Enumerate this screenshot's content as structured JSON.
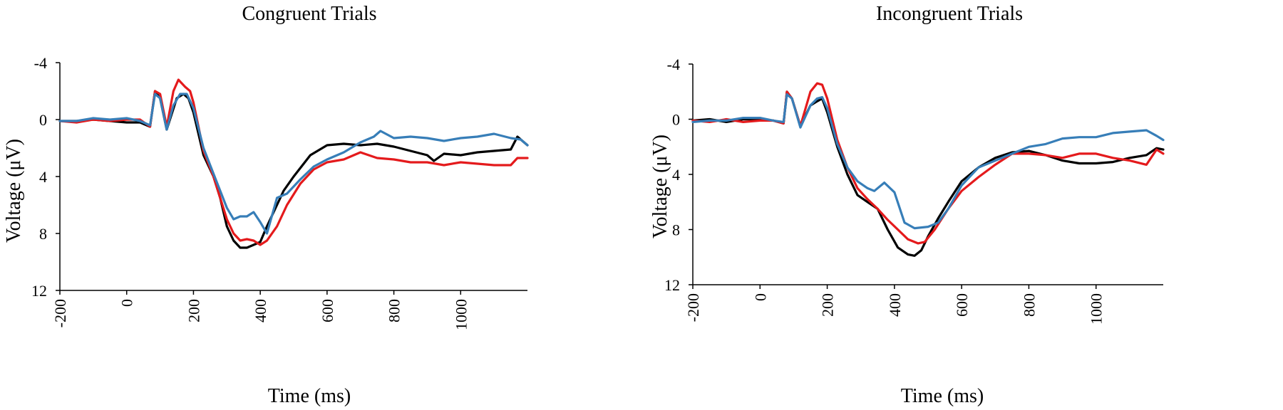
{
  "chart_data": [
    {
      "type": "line",
      "title": "Congruent Trials",
      "xlabel": "Time (ms)",
      "ylabel": "Voltage (μV)",
      "xlim": [
        -200,
        1200
      ],
      "ylim": [
        12,
        -4
      ],
      "y_inverted": true,
      "grid": false,
      "x_ticks": [
        -200,
        0,
        200,
        400,
        600,
        800,
        1000
      ],
      "y_ticks": [
        -4,
        0,
        4,
        8,
        12
      ],
      "series": [
        {
          "color": "#000000",
          "x": [
            -200,
            -150,
            -100,
            -50,
            0,
            40,
            70,
            85,
            100,
            120,
            150,
            170,
            185,
            200,
            230,
            260,
            280,
            300,
            320,
            340,
            360,
            380,
            400,
            420,
            440,
            470,
            500,
            550,
            600,
            650,
            700,
            750,
            800,
            850,
            900,
            920,
            950,
            1000,
            1050,
            1100,
            1150,
            1170,
            1200
          ],
          "y": [
            0.1,
            0.1,
            0,
            0.1,
            0.2,
            0.2,
            0.5,
            -2,
            -1.5,
            0.7,
            -1.5,
            -1.8,
            -1.5,
            -0.5,
            2.5,
            4,
            5.5,
            7.5,
            8.5,
            9,
            9,
            8.8,
            8.6,
            7.5,
            6.5,
            5,
            4,
            2.5,
            1.8,
            1.7,
            1.8,
            1.7,
            1.9,
            2.2,
            2.5,
            2.9,
            2.4,
            2.5,
            2.3,
            2.2,
            2.1,
            1.2,
            1.8
          ]
        },
        {
          "color": "#e41a1c",
          "x": [
            -200,
            -150,
            -100,
            -50,
            0,
            40,
            70,
            85,
            100,
            120,
            140,
            155,
            175,
            190,
            200,
            230,
            260,
            280,
            300,
            320,
            340,
            360,
            380,
            400,
            420,
            450,
            480,
            520,
            560,
            600,
            650,
            700,
            750,
            800,
            850,
            900,
            950,
            1000,
            1050,
            1100,
            1150,
            1170,
            1200
          ],
          "y": [
            0.1,
            0.2,
            0,
            0.1,
            0,
            0,
            0.5,
            -2,
            -1.8,
            0.5,
            -2,
            -2.8,
            -2.3,
            -2,
            -1.2,
            2.2,
            4,
            5.5,
            7,
            8,
            8.5,
            8.4,
            8.5,
            8.8,
            8.5,
            7.5,
            6,
            4.5,
            3.5,
            3,
            2.8,
            2.3,
            2.7,
            2.8,
            3,
            3,
            3.2,
            3,
            3.1,
            3.2,
            3.2,
            2.7,
            2.7
          ]
        },
        {
          "color": "#377eb8",
          "x": [
            -200,
            -150,
            -100,
            -50,
            0,
            40,
            70,
            85,
            100,
            120,
            140,
            160,
            180,
            200,
            230,
            260,
            280,
            300,
            320,
            340,
            360,
            380,
            400,
            420,
            450,
            480,
            520,
            560,
            600,
            650,
            700,
            740,
            760,
            800,
            850,
            900,
            950,
            1000,
            1050,
            1100,
            1150,
            1180,
            1200
          ],
          "y": [
            0.1,
            0.1,
            -0.1,
            0,
            -0.1,
            0.1,
            0.4,
            -1.8,
            -1.5,
            0.7,
            -1,
            -1.8,
            -1.8,
            -0.8,
            2,
            3.8,
            5,
            6.2,
            7,
            6.8,
            6.8,
            6.5,
            7.2,
            8,
            5.5,
            5.2,
            4.2,
            3.3,
            2.8,
            2.3,
            1.6,
            1.2,
            0.8,
            1.3,
            1.2,
            1.3,
            1.5,
            1.3,
            1.2,
            1,
            1.3,
            1.4,
            1.8
          ]
        }
      ]
    },
    {
      "type": "line",
      "title": "Incongruent Trials",
      "xlabel": "Time (ms)",
      "ylabel": "Voltage (μV)",
      "xlim": [
        -200,
        1200
      ],
      "ylim": [
        12,
        -4
      ],
      "y_inverted": true,
      "grid": false,
      "x_ticks": [
        -200,
        0,
        200,
        400,
        600,
        800,
        1000
      ],
      "y_ticks": [
        -4,
        0,
        4,
        8,
        12
      ],
      "series": [
        {
          "color": "#000000",
          "x": [
            -200,
            -150,
            -100,
            -50,
            0,
            40,
            70,
            80,
            95,
            120,
            150,
            170,
            185,
            200,
            230,
            260,
            290,
            320,
            350,
            380,
            410,
            440,
            460,
            480,
            500,
            530,
            560,
            600,
            650,
            700,
            750,
            800,
            850,
            900,
            950,
            1000,
            1050,
            1100,
            1150,
            1180,
            1200
          ],
          "y": [
            0.1,
            0,
            0.2,
            0,
            0,
            0.1,
            0.3,
            -2,
            -1.5,
            0.5,
            -1,
            -1.3,
            -1.5,
            -0.5,
            2,
            4,
            5.5,
            6,
            6.5,
            8,
            9.3,
            9.8,
            9.9,
            9.5,
            8.5,
            7.2,
            6,
            4.5,
            3.5,
            2.8,
            2.4,
            2.3,
            2.6,
            3,
            3.2,
            3.2,
            3.1,
            2.8,
            2.6,
            2.1,
            2.2
          ]
        },
        {
          "color": "#e41a1c",
          "x": [
            -200,
            -150,
            -100,
            -50,
            0,
            40,
            70,
            80,
            95,
            120,
            150,
            170,
            185,
            200,
            230,
            260,
            290,
            320,
            350,
            380,
            410,
            440,
            470,
            490,
            520,
            560,
            600,
            650,
            700,
            750,
            800,
            850,
            900,
            950,
            1000,
            1050,
            1100,
            1150,
            1180,
            1200
          ],
          "y": [
            0.1,
            0.2,
            0,
            0.2,
            0.1,
            0.1,
            0.3,
            -2,
            -1.5,
            0.5,
            -2,
            -2.6,
            -2.5,
            -1.5,
            1.5,
            3.5,
            5,
            5.8,
            6.5,
            7.3,
            8,
            8.7,
            9,
            8.9,
            8,
            6.5,
            5.2,
            4.2,
            3.3,
            2.5,
            2.5,
            2.6,
            2.8,
            2.5,
            2.5,
            2.8,
            3,
            3.3,
            2.2,
            2.5
          ]
        },
        {
          "color": "#377eb8",
          "x": [
            -200,
            -150,
            -100,
            -50,
            0,
            40,
            70,
            80,
            95,
            120,
            150,
            170,
            185,
            200,
            230,
            260,
            290,
            320,
            340,
            370,
            400,
            430,
            460,
            500,
            530,
            560,
            600,
            650,
            700,
            750,
            800,
            850,
            900,
            950,
            1000,
            1050,
            1100,
            1150,
            1180,
            1200
          ],
          "y": [
            0.2,
            0.1,
            0.1,
            -0.1,
            -0.1,
            0.1,
            0.2,
            -1.8,
            -1.5,
            0.6,
            -1,
            -1.5,
            -1.6,
            -0.8,
            1.8,
            3.5,
            4.5,
            5,
            5.2,
            4.6,
            5.3,
            7.5,
            7.9,
            7.8,
            7.5,
            6.5,
            4.8,
            3.5,
            3,
            2.5,
            2,
            1.8,
            1.4,
            1.3,
            1.3,
            1,
            0.9,
            0.8,
            1.2,
            1.5
          ]
        }
      ]
    }
  ]
}
